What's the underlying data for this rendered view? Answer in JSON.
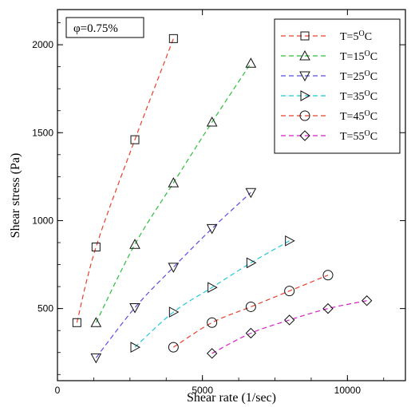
{
  "chart_data": {
    "type": "scatter",
    "xlabel": "Shear rate (1/sec)",
    "ylabel": "Shear stress (Pa)",
    "xlim": [
      0,
      12000
    ],
    "ylim": [
      90,
      2200
    ],
    "xticks": [
      0,
      5000,
      10000
    ],
    "yticks": [
      500,
      1000,
      1500,
      2000
    ],
    "grid": false,
    "legend_position": "top-right",
    "annotation": "φ=0.75%",
    "series": [
      {
        "name": "T=5°C",
        "label_prefix": "T=5",
        "label_sup": "O",
        "label_suffix": "C",
        "marker": "square",
        "line_color": "#e8412c",
        "x": [
          670,
          1330,
          2670,
          4000
        ],
        "y": [
          420,
          850,
          1460,
          2035
        ]
      },
      {
        "name": "T=15°C",
        "label_prefix": "T=15",
        "label_sup": "O",
        "label_suffix": "C",
        "marker": "triangle-up",
        "line_color": "#2dbf3c",
        "x": [
          1330,
          2670,
          4000,
          5330,
          6670
        ],
        "y": [
          420,
          865,
          1215,
          1560,
          1895
        ]
      },
      {
        "name": "T=25°C",
        "label_prefix": "T=25",
        "label_sup": "O",
        "label_suffix": "C",
        "marker": "triangle-down",
        "line_color": "#5a4fe0",
        "x": [
          1330,
          2670,
          4000,
          5330,
          6670
        ],
        "y": [
          220,
          505,
          735,
          955,
          1160
        ]
      },
      {
        "name": "T=35°C",
        "label_prefix": "T=35",
        "label_sup": "O",
        "label_suffix": "C",
        "marker": "triangle-right",
        "line_color": "#21c8d8",
        "x": [
          2670,
          4000,
          5330,
          6670,
          8000
        ],
        "y": [
          280,
          480,
          620,
          760,
          885
        ]
      },
      {
        "name": "T=45°C",
        "label_prefix": "T=45",
        "label_sup": "O",
        "label_suffix": "C",
        "marker": "circle",
        "line_color": "#e8412c",
        "x": [
          4000,
          5330,
          6670,
          8000,
          9330
        ],
        "y": [
          280,
          420,
          510,
          600,
          690
        ]
      },
      {
        "name": "T=55°C",
        "label_prefix": "T=55",
        "label_sup": "O",
        "label_suffix": "C",
        "marker": "diamond",
        "line_color": "#d421c8",
        "x": [
          5330,
          6670,
          8000,
          9330,
          10670
        ],
        "y": [
          245,
          360,
          435,
          500,
          545
        ]
      }
    ]
  }
}
